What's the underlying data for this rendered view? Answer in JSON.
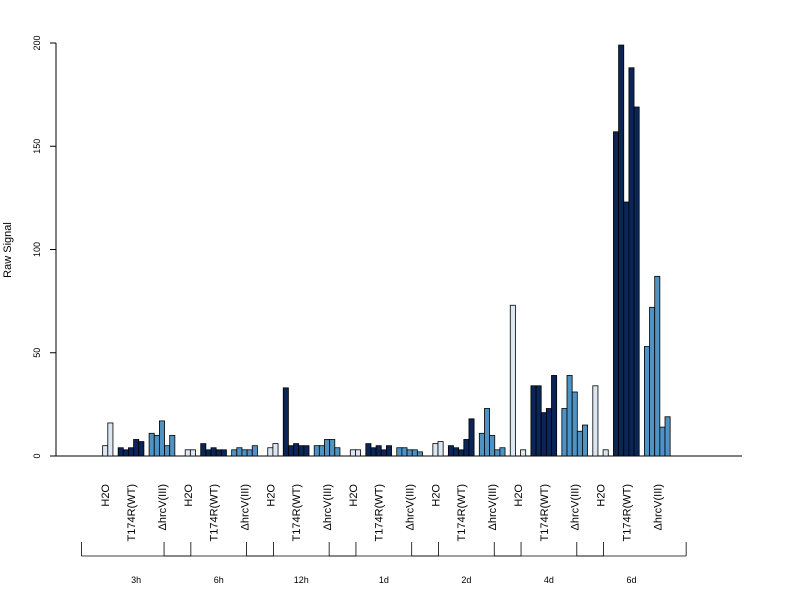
{
  "chart_data": {
    "type": "bar",
    "title": "",
    "xlabel": "",
    "ylabel": "Raw Signal",
    "ylim": [
      0,
      200
    ],
    "yticks": [
      0,
      50,
      100,
      150,
      200
    ],
    "grid": false,
    "legend": "none",
    "colors": {
      "H2O": "#dbe7f3",
      "T174R(WT)": "#0b2556",
      "ΔhrcV(III)": "#4f93c5",
      "axis": "#000000"
    },
    "treatments": [
      "H2O",
      "T174R(WT)",
      "ΔhrcV(III)"
    ],
    "timepoints": [
      {
        "label": "3h",
        "groups": [
          {
            "treatment": "H2O",
            "values": [
              0,
              5,
              16
            ]
          },
          {
            "treatment": "T174R(WT)",
            "values": [
              4,
              3,
              4,
              8,
              7
            ]
          },
          {
            "treatment": "ΔhrcV(III)",
            "values": [
              11,
              10,
              17,
              5,
              10
            ]
          }
        ]
      },
      {
        "label": "6h",
        "groups": [
          {
            "treatment": "H2O",
            "values": [
              0,
              3,
              3
            ]
          },
          {
            "treatment": "T174R(WT)",
            "values": [
              6,
              3,
              4,
              3,
              3
            ]
          },
          {
            "treatment": "ΔhrcV(III)",
            "values": [
              3,
              4,
              3,
              3,
              5
            ]
          }
        ]
      },
      {
        "label": "12h",
        "groups": [
          {
            "treatment": "H2O",
            "values": [
              0,
              4,
              6
            ]
          },
          {
            "treatment": "T174R(WT)",
            "values": [
              33,
              5,
              6,
              5,
              5
            ]
          },
          {
            "treatment": "ΔhrcV(III)",
            "values": [
              5,
              5,
              8,
              8,
              4
            ]
          }
        ]
      },
      {
        "label": "1d",
        "groups": [
          {
            "treatment": "H2O",
            "values": [
              0,
              3,
              3
            ]
          },
          {
            "treatment": "T174R(WT)",
            "values": [
              6,
              4,
              5,
              3,
              5
            ]
          },
          {
            "treatment": "ΔhrcV(III)",
            "values": [
              4,
              4,
              3,
              3,
              2
            ]
          }
        ]
      },
      {
        "label": "2d",
        "groups": [
          {
            "treatment": "H2O",
            "values": [
              0,
              6,
              7
            ]
          },
          {
            "treatment": "T174R(WT)",
            "values": [
              5,
              4,
              3,
              8,
              18
            ]
          },
          {
            "treatment": "ΔhrcV(III)",
            "values": [
              11,
              23,
              10,
              3,
              4
            ]
          }
        ]
      },
      {
        "label": "4d",
        "groups": [
          {
            "treatment": "H2O",
            "values": [
              73,
              0,
              3
            ]
          },
          {
            "treatment": "T174R(WT)",
            "values": [
              34,
              34,
              21,
              23,
              39
            ]
          },
          {
            "treatment": "ΔhrcV(III)",
            "values": [
              23,
              39,
              31,
              12,
              15
            ]
          }
        ]
      },
      {
        "label": "6d",
        "groups": [
          {
            "treatment": "H2O",
            "values": [
              34,
              0,
              3
            ]
          },
          {
            "treatment": "T174R(WT)",
            "values": [
              157,
              199,
              123,
              188,
              169
            ]
          },
          {
            "treatment": "ΔhrcV(III)",
            "values": [
              53,
              72,
              87,
              14,
              19
            ]
          }
        ]
      }
    ]
  }
}
